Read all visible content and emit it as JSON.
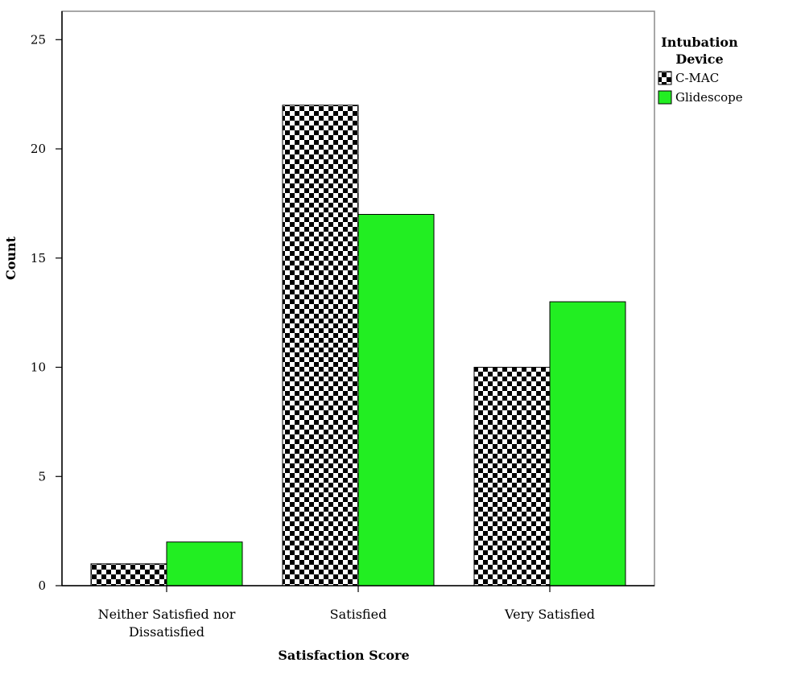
{
  "chart_data": {
    "type": "bar",
    "title": "",
    "xlabel": "Satisfaction Score",
    "ylabel": "Count",
    "categories": [
      "Neither Satisfied nor Dissatisfied",
      "Satisfied",
      "Very Satisfied"
    ],
    "category_lines": [
      [
        "Neither Satisfied nor",
        "Dissatisfied"
      ],
      [
        "Satisfied"
      ],
      [
        "Very Satisfied"
      ]
    ],
    "series": [
      {
        "name": "C-MAC",
        "values": [
          1,
          22,
          10
        ],
        "color": "#000000",
        "pattern": "checkerboard"
      },
      {
        "name": "Glidescope",
        "values": [
          2,
          17,
          13
        ],
        "color": "#22ee22",
        "pattern": "solid"
      }
    ],
    "ylim": [
      0,
      26.3
    ],
    "yticks": [
      0,
      5,
      10,
      15,
      20,
      25
    ],
    "grid": false,
    "legend": {
      "title_lines": [
        "Intubation",
        "Device"
      ],
      "placement": "right-top"
    }
  }
}
